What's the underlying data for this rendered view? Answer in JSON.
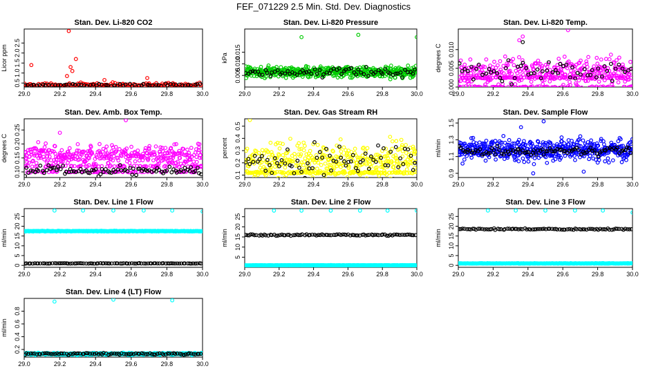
{
  "page_title": "FEF_071229  2.5 Min. Std. Dev. Diagnostics",
  "chart_data": [
    {
      "type": "scatter",
      "title": "Stan. Dev. Li-820 CO2",
      "xlabel": "",
      "ylabel": "Licor ppm",
      "xlim": [
        29.0,
        30.0
      ],
      "ylim": [
        0.3,
        3.2
      ],
      "xticks": [
        "29.0",
        "29.2",
        "29.4",
        "29.6",
        "29.8",
        "30.0"
      ],
      "yticks": [
        0.5,
        1.0,
        1.5,
        2.0,
        2.5
      ],
      "ytick_labels": [
        "0.5",
        "1.0",
        "1.5",
        "2.0",
        "2.5"
      ],
      "series": [
        {
          "name": "primary",
          "color": "#ff0000",
          "n": 150,
          "base": 0.4,
          "spread": 0.07,
          "outliers": [
            {
              "x": 29.25,
              "y": 3.1
            },
            {
              "x": 29.04,
              "y": 1.4
            },
            {
              "x": 29.29,
              "y": 1.7
            },
            {
              "x": 29.26,
              "y": 1.3
            },
            {
              "x": 29.27,
              "y": 1.1
            },
            {
              "x": 29.24,
              "y": 0.85
            },
            {
              "x": 29.69,
              "y": 0.75
            },
            {
              "x": 29.45,
              "y": 0.65
            }
          ]
        },
        {
          "name": "secondary",
          "color": "#000000",
          "n": 60,
          "base": 0.4,
          "spread": 0.04,
          "outliers": []
        }
      ]
    },
    {
      "type": "scatter",
      "title": "Stan. Dev. Li-820 Pressure",
      "xlabel": "",
      "ylabel": "kPa",
      "xlim": [
        29.0,
        30.0
      ],
      "ylim": [
        0.0,
        0.025
      ],
      "xticks": [
        "29.0",
        "29.2",
        "29.4",
        "29.6",
        "29.8",
        "30.0"
      ],
      "yticks": [
        0.005,
        0.01,
        0.015
      ],
      "ytick_labels": [
        "0.005",
        "0.010",
        "0.015"
      ],
      "series": [
        {
          "name": "primary",
          "color": "#00cc00",
          "n": 500,
          "base": 0.0065,
          "spread": 0.0016,
          "outliers": [
            {
              "x": 29.33,
              "y": 0.0215
            },
            {
              "x": 29.66,
              "y": 0.0225
            },
            {
              "x": 30.0,
              "y": 0.0215
            }
          ]
        },
        {
          "name": "secondary",
          "color": "#000000",
          "n": 70,
          "base": 0.0065,
          "spread": 0.0013,
          "outliers": []
        }
      ]
    },
    {
      "type": "scatter",
      "title": "Stan. Dev. Li-820 Temp.",
      "xlabel": "",
      "ylabel": "degrees C",
      "xlim": [
        29.0,
        30.0
      ],
      "ylim": [
        0.0,
        0.0155
      ],
      "xticks": [
        "29.0",
        "29.2",
        "29.4",
        "29.6",
        "29.8",
        "30.0"
      ],
      "yticks": [
        0.0,
        0.005,
        0.01
      ],
      "ytick_labels": [
        "0.000",
        "0.005",
        "0.010"
      ],
      "series": [
        {
          "name": "primary",
          "color": "#ff00ff",
          "n": 500,
          "base": 0.004,
          "spread": 0.0025,
          "bands": [
            0.0,
            0.0025
          ],
          "outliers": [
            {
              "x": 29.63,
              "y": 0.0152
            },
            {
              "x": 29.37,
              "y": 0.0135
            },
            {
              "x": 29.35,
              "y": 0.0125
            }
          ]
        },
        {
          "name": "secondary",
          "color": "#000000",
          "n": 60,
          "base": 0.004,
          "spread": 0.0022,
          "outliers": [
            {
              "x": 29.37,
              "y": 0.012
            }
          ]
        }
      ]
    },
    {
      "type": "scatter",
      "title": "Stan. Dev. Amb. Box Temp.",
      "xlabel": "",
      "ylabel": "degrees C",
      "xlim": [
        29.0,
        30.0
      ],
      "ylim": [
        0.08,
        0.29
      ],
      "xticks": [
        "29.0",
        "29.2",
        "29.4",
        "29.6",
        "29.8",
        "30.0"
      ],
      "yticks": [
        0.1,
        0.15,
        0.2,
        0.25
      ],
      "ytick_labels": [
        "0.10",
        "0.15",
        "0.20",
        "0.25"
      ],
      "series": [
        {
          "name": "primary",
          "color": "#ff00ff",
          "n": 500,
          "base": 0.16,
          "spread": 0.025,
          "bands": [
            0.1,
            0.12
          ],
          "outliers": [
            {
              "x": 29.57,
              "y": 0.285
            },
            {
              "x": 29.2,
              "y": 0.24
            }
          ]
        },
        {
          "name": "secondary",
          "color": "#000000",
          "n": 90,
          "base": 0.105,
          "spread": 0.012,
          "outliers": []
        }
      ]
    },
    {
      "type": "scatter",
      "title": "Stan. Dev. Gas Stream RH",
      "xlabel": "",
      "ylabel": "percent",
      "xlim": [
        29.0,
        30.0
      ],
      "ylim": [
        0.08,
        0.56
      ],
      "xticks": [
        "29.0",
        "29.2",
        "29.4",
        "29.6",
        "29.8",
        "30.0"
      ],
      "yticks": [
        0.1,
        0.2,
        0.3,
        0.4,
        0.5
      ],
      "ytick_labels": [
        "0.1",
        "0.2",
        "0.3",
        "0.4",
        "0.5"
      ],
      "series": [
        {
          "name": "primary",
          "color": "#ffff00",
          "n": 500,
          "base": 0.22,
          "spread": 0.1,
          "bands": [
            0.12
          ],
          "outliers": [
            {
              "x": 29.03,
              "y": 0.55
            }
          ]
        },
        {
          "name": "secondary",
          "color": "#000000",
          "n": 70,
          "base": 0.22,
          "spread": 0.09,
          "outliers": []
        }
      ]
    },
    {
      "type": "scatter",
      "title": "Stan. Dev. Sample Flow",
      "xlabel": "",
      "ylabel": "ml/min",
      "xlim": [
        29.0,
        30.0
      ],
      "ylim": [
        0.85,
        1.55
      ],
      "xticks": [
        "29.0",
        "29.2",
        "29.4",
        "29.6",
        "29.8",
        "30.0"
      ],
      "yticks": [
        0.9,
        1.1,
        1.3,
        1.5
      ],
      "ytick_labels": [
        "0.9",
        "1.1",
        "1.3",
        "1.5"
      ],
      "series": [
        {
          "name": "primary",
          "color": "#0000ff",
          "n": 500,
          "base": 1.18,
          "spread": 0.09,
          "outliers": [
            {
              "x": 29.49,
              "y": 1.52
            },
            {
              "x": 29.36,
              "y": 1.45
            },
            {
              "x": 29.43,
              "y": 0.9
            },
            {
              "x": 29.72,
              "y": 0.92
            }
          ]
        },
        {
          "name": "secondary",
          "color": "#000000",
          "n": 90,
          "base": 1.17,
          "spread": 0.04,
          "outliers": []
        }
      ]
    },
    {
      "type": "scatter",
      "title": "Stan. Dev. Line 1 Flow",
      "xlabel": "",
      "ylabel": "ml/min",
      "xlim": [
        29.0,
        30.0
      ],
      "ylim": [
        -1,
        29
      ],
      "xticks": [
        "29.0",
        "29.2",
        "29.4",
        "29.6",
        "29.8",
        "30.0"
      ],
      "yticks": [
        0,
        5,
        10,
        15,
        20,
        25
      ],
      "ytick_labels": [
        "0",
        "5",
        "10",
        "15",
        "20",
        "25"
      ],
      "series": [
        {
          "name": "primary",
          "color": "#00ffff",
          "n": 400,
          "base": 17.5,
          "spread": 0.12,
          "outliers": [
            {
              "x": 29.17,
              "y": 28
            },
            {
              "x": 29.33,
              "y": 28
            },
            {
              "x": 29.5,
              "y": 28
            },
            {
              "x": 29.67,
              "y": 28
            },
            {
              "x": 29.83,
              "y": 28
            },
            {
              "x": 30.0,
              "y": 27.5
            }
          ]
        },
        {
          "name": "secondary",
          "color": "#000000",
          "n": 90,
          "base": 1.0,
          "spread": 0.08,
          "outliers": []
        }
      ]
    },
    {
      "type": "scatter",
      "title": "Stan. Dev. Line 2 Flow",
      "xlabel": "",
      "ylabel": "ml/min",
      "xlim": [
        29.0,
        30.0
      ],
      "ylim": [
        0,
        29
      ],
      "xticks": [
        "29.0",
        "29.2",
        "29.4",
        "29.6",
        "29.8",
        "30.0"
      ],
      "yticks": [
        5,
        10,
        15,
        20,
        25
      ],
      "ytick_labels": [
        "5",
        "10",
        "15",
        "20",
        "25"
      ],
      "series": [
        {
          "name": "primary",
          "color": "#00ffff",
          "n": 400,
          "base": 1.0,
          "spread": 0.08,
          "outliers": [
            {
              "x": 29.17,
              "y": 28
            },
            {
              "x": 29.33,
              "y": 28
            },
            {
              "x": 29.5,
              "y": 28
            },
            {
              "x": 29.67,
              "y": 28
            },
            {
              "x": 29.83,
              "y": 28
            },
            {
              "x": 30.0,
              "y": 28
            }
          ]
        },
        {
          "name": "secondary",
          "color": "#000000",
          "n": 90,
          "base": 16.0,
          "spread": 0.3,
          "outliers": []
        }
      ]
    },
    {
      "type": "scatter",
      "title": "Stan. Dev. Line 3 Flow",
      "xlabel": "",
      "ylabel": "ml/min",
      "xlim": [
        29.0,
        30.0
      ],
      "ylim": [
        -1,
        29
      ],
      "xticks": [
        "29.0",
        "29.2",
        "29.4",
        "29.6",
        "29.8",
        "30.0"
      ],
      "yticks": [
        0,
        5,
        10,
        15,
        20,
        25
      ],
      "ytick_labels": [
        "0",
        "5",
        "10",
        "15",
        "20",
        "25"
      ],
      "series": [
        {
          "name": "primary",
          "color": "#00ffff",
          "n": 400,
          "base": 1.0,
          "spread": 0.08,
          "outliers": [
            {
              "x": 29.17,
              "y": 28
            },
            {
              "x": 29.33,
              "y": 28
            },
            {
              "x": 29.5,
              "y": 28
            },
            {
              "x": 29.67,
              "y": 28
            },
            {
              "x": 29.83,
              "y": 28
            },
            {
              "x": 30.0,
              "y": 27
            }
          ]
        },
        {
          "name": "secondary",
          "color": "#000000",
          "n": 90,
          "base": 18.5,
          "spread": 0.25,
          "outliers": []
        }
      ]
    },
    {
      "type": "scatter",
      "title": "Stan. Dev. Line 4 (LT) Flow",
      "xlabel": "",
      "ylabel": "ml/min",
      "xlim": [
        29.0,
        30.0
      ],
      "ylim": [
        0.08,
        1.0
      ],
      "xticks": [
        "29.0",
        "29.2",
        "29.4",
        "29.6",
        "29.8",
        "30.0"
      ],
      "yticks": [
        0.2,
        0.4,
        0.6,
        0.8
      ],
      "ytick_labels": [
        "0.2",
        "0.4",
        "0.6",
        "0.8"
      ],
      "series": [
        {
          "name": "primary",
          "color": "#00ffff",
          "n": 400,
          "base": 0.13,
          "spread": 0.012,
          "outliers": [
            {
              "x": 29.17,
              "y": 0.95
            },
            {
              "x": 29.5,
              "y": 0.98
            },
            {
              "x": 29.83,
              "y": 0.97
            }
          ]
        },
        {
          "name": "secondary",
          "color": "#000000",
          "n": 90,
          "base": 0.13,
          "spread": 0.01,
          "outliers": []
        }
      ]
    }
  ]
}
